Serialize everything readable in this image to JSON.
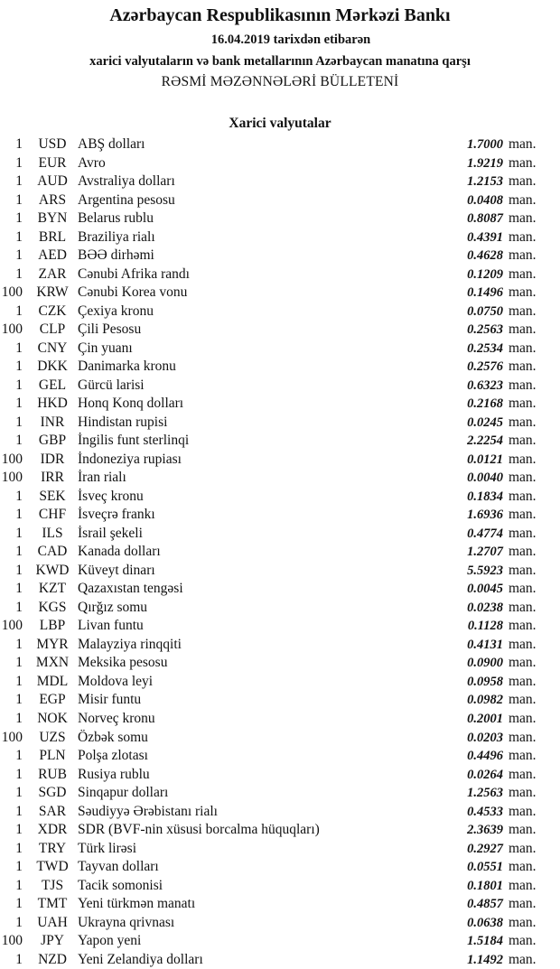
{
  "header": {
    "title": "Azərbaycan Respublikasının Mərkəzi Bankı",
    "date_line": "16.04.2019  tarixdən etibarən",
    "subtitle": "xarici valyutaların və bank metallarının Azərbaycan manatına qarşı",
    "bulletin": "RƏSMİ MƏZƏNNƏLƏRİ BÜLLETENİ"
  },
  "section": {
    "title": "Xarici valyutalar"
  },
  "unit_label": "man.",
  "rates": [
    {
      "amount": "1",
      "code": "USD",
      "name": "ABŞ dolları",
      "rate": "1.7000"
    },
    {
      "amount": "1",
      "code": "EUR",
      "name": "Avro",
      "rate": "1.9219"
    },
    {
      "amount": "1",
      "code": "AUD",
      "name": "Avstraliya dolları",
      "rate": "1.2153"
    },
    {
      "amount": "1",
      "code": "ARS",
      "name": "Argentina pesosu",
      "rate": "0.0408"
    },
    {
      "amount": "1",
      "code": "BYN",
      "name": "Belarus rublu",
      "rate": "0.8087"
    },
    {
      "amount": "1",
      "code": "BRL",
      "name": "Braziliya rialı",
      "rate": "0.4391"
    },
    {
      "amount": "1",
      "code": "AED",
      "name": "BƏƏ dirhəmi",
      "rate": "0.4628"
    },
    {
      "amount": "1",
      "code": "ZAR",
      "name": "Cənubi Afrika randı",
      "rate": "0.1209"
    },
    {
      "amount": "100",
      "code": "KRW",
      "name": "Cənubi Korea vonu",
      "rate": "0.1496"
    },
    {
      "amount": "1",
      "code": "CZK",
      "name": "Çexiya kronu",
      "rate": "0.0750"
    },
    {
      "amount": "100",
      "code": "CLP",
      "name": "Çili Pesosu",
      "rate": "0.2563"
    },
    {
      "amount": "1",
      "code": "CNY",
      "name": "Çin yuanı",
      "rate": "0.2534"
    },
    {
      "amount": "1",
      "code": "DKK",
      "name": "Danimarka kronu",
      "rate": "0.2576"
    },
    {
      "amount": "1",
      "code": "GEL",
      "name": "Gürcü larisi",
      "rate": "0.6323"
    },
    {
      "amount": "1",
      "code": "HKD",
      "name": "Honq Konq dolları",
      "rate": "0.2168"
    },
    {
      "amount": "1",
      "code": "INR",
      "name": "Hindistan rupisi",
      "rate": "0.0245"
    },
    {
      "amount": "1",
      "code": "GBP",
      "name": "İngilis funt sterlinqi",
      "rate": "2.2254"
    },
    {
      "amount": "100",
      "code": "IDR",
      "name": "İndoneziya rupiası",
      "rate": "0.0121"
    },
    {
      "amount": "100",
      "code": "IRR",
      "name": "İran rialı",
      "rate": "0.0040"
    },
    {
      "amount": "1",
      "code": "SEK",
      "name": "İsveç kronu",
      "rate": "0.1834"
    },
    {
      "amount": "1",
      "code": "CHF",
      "name": "İsveçrə frankı",
      "rate": "1.6936"
    },
    {
      "amount": "1",
      "code": "ILS",
      "name": "İsrail şekeli",
      "rate": "0.4774"
    },
    {
      "amount": "1",
      "code": "CAD",
      "name": "Kanada dolları",
      "rate": "1.2707"
    },
    {
      "amount": "1",
      "code": "KWD",
      "name": "Küveyt dinarı",
      "rate": "5.5923"
    },
    {
      "amount": "1",
      "code": "KZT",
      "name": "Qazaxıstan tengəsi",
      "rate": "0.0045"
    },
    {
      "amount": "1",
      "code": "KGS",
      "name": "Qırğız somu",
      "rate": "0.0238"
    },
    {
      "amount": "100",
      "code": "LBP",
      "name": "Livan funtu",
      "rate": "0.1128"
    },
    {
      "amount": "1",
      "code": "MYR",
      "name": "Malayziya rinqqiti",
      "rate": "0.4131"
    },
    {
      "amount": "1",
      "code": "MXN",
      "name": "Meksika pesosu",
      "rate": "0.0900"
    },
    {
      "amount": "1",
      "code": "MDL",
      "name": "Moldova leyi",
      "rate": "0.0958"
    },
    {
      "amount": "1",
      "code": "EGP",
      "name": "Misir funtu",
      "rate": "0.0982"
    },
    {
      "amount": "1",
      "code": "NOK",
      "name": "Norveç kronu",
      "rate": "0.2001"
    },
    {
      "amount": "100",
      "code": "UZS",
      "name": "Özbək somu",
      "rate": "0.0203"
    },
    {
      "amount": "1",
      "code": "PLN",
      "name": "Polşa zlotası",
      "rate": "0.4496"
    },
    {
      "amount": "1",
      "code": "RUB",
      "name": "Rusiya rublu",
      "rate": "0.0264"
    },
    {
      "amount": "1",
      "code": "SGD",
      "name": "Sinqapur dolları",
      "rate": "1.2563"
    },
    {
      "amount": "1",
      "code": "SAR",
      "name": "Səudiyyə Ərəbistanı rialı",
      "rate": "0.4533"
    },
    {
      "amount": "1",
      "code": "XDR",
      "name": "SDR (BVF-nin xüsusi borcalma hüquqları)",
      "rate": "2.3639"
    },
    {
      "amount": "1",
      "code": "TRY",
      "name": "Türk lirəsi",
      "rate": "0.2927"
    },
    {
      "amount": "1",
      "code": "TWD",
      "name": "Tayvan dolları",
      "rate": "0.0551"
    },
    {
      "amount": "1",
      "code": "TJS",
      "name": "Tacik somonisi",
      "rate": "0.1801"
    },
    {
      "amount": "1",
      "code": "TMT",
      "name": "Yeni türkmən manatı",
      "rate": "0.4857"
    },
    {
      "amount": "1",
      "code": "UAH",
      "name": "Ukrayna qrivnası",
      "rate": "0.0638"
    },
    {
      "amount": "100",
      "code": "JPY",
      "name": "Yapon yeni",
      "rate": "1.5184"
    },
    {
      "amount": "1",
      "code": "NZD",
      "name": "Yeni Zelandiya dolları",
      "rate": "1.1492"
    }
  ]
}
